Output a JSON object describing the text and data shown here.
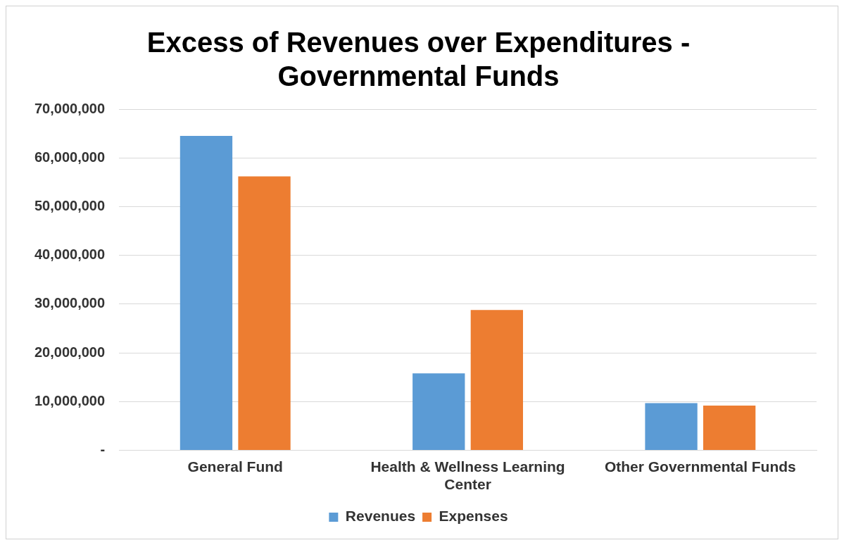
{
  "chart_data": {
    "type": "bar",
    "title": "Excess of Revenues over Expenditures - Governmental Funds",
    "categories": [
      "General Fund",
      "Health & Wellness Learning Center",
      "Other Governmental Funds"
    ],
    "series": [
      {
        "name": "Revenues",
        "color": "#5b9bd5",
        "values": [
          64500000,
          15800000,
          9700000
        ]
      },
      {
        "name": "Expenses",
        "color": "#ed7d31",
        "values": [
          56200000,
          28800000,
          9200000
        ]
      }
    ],
    "ylim": [
      0,
      70000000
    ],
    "yticks": [
      {
        "value": 0,
        "label": "-"
      },
      {
        "value": 10000000,
        "label": "10,000,000"
      },
      {
        "value": 20000000,
        "label": "20,000,000"
      },
      {
        "value": 30000000,
        "label": "30,000,000"
      },
      {
        "value": 40000000,
        "label": "40,000,000"
      },
      {
        "value": 50000000,
        "label": "50,000,000"
      },
      {
        "value": 60000000,
        "label": "60,000,000"
      },
      {
        "value": 70000000,
        "label": "70,000,000"
      }
    ],
    "grid": "y",
    "legend": "bottom"
  }
}
